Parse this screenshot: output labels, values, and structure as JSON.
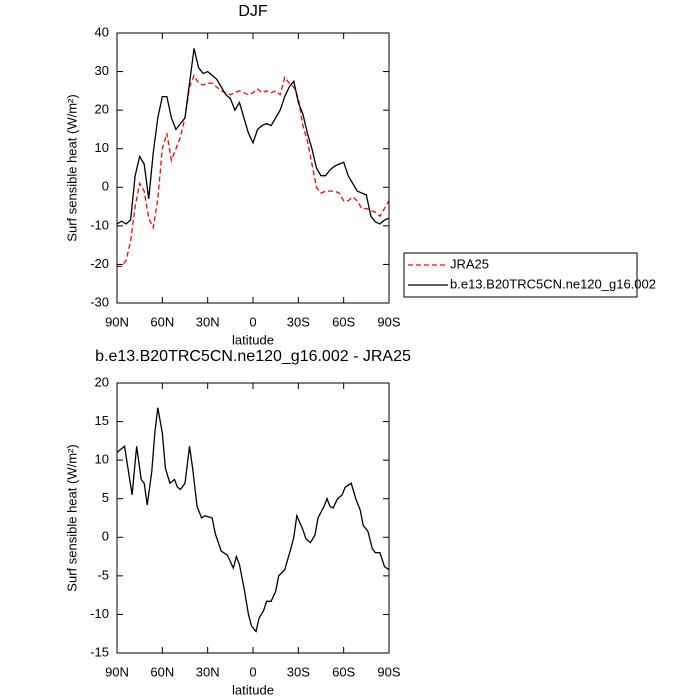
{
  "chart_data": [
    {
      "type": "line",
      "title": "DJF",
      "xlabel": "latitude",
      "ylabel": "Surf sensible heat (W/m²)",
      "xlim": [
        90,
        -90
      ],
      "ylim": [
        -30,
        40
      ],
      "xticks": [
        {
          "value": 90,
          "label": "90N"
        },
        {
          "value": 60,
          "label": "60N"
        },
        {
          "value": 30,
          "label": "30N"
        },
        0,
        {
          "value": -30,
          "label": "30S"
        },
        {
          "value": -60,
          "label": "60S"
        },
        {
          "value": -90,
          "label": "90S"
        }
      ],
      "yticks": [
        -30,
        -20,
        -10,
        0,
        10,
        20,
        30,
        40
      ],
      "legend_position": "right",
      "x": [
        90,
        87,
        84,
        81,
        78,
        75,
        72,
        69,
        66,
        63,
        60,
        57,
        54,
        51,
        48,
        45,
        42,
        39,
        36,
        33,
        30,
        27,
        24,
        21,
        18,
        15,
        12,
        9,
        6,
        3,
        0,
        -3,
        -6,
        -9,
        -12,
        -15,
        -18,
        -21,
        -24,
        -27,
        -30,
        -33,
        -36,
        -39,
        -42,
        -45,
        -48,
        -51,
        -54,
        -57,
        -60,
        -63,
        -66,
        -69,
        -72,
        -75,
        -78,
        -81,
        -84,
        -87,
        -90
      ],
      "series": [
        {
          "name": "JRA25",
          "color": "#ff0000",
          "line_style": "dashed",
          "values": [
            -20.5,
            -20.5,
            -19,
            -14,
            -5,
            1,
            -1,
            -8,
            -10.5,
            -3,
            10,
            14,
            7,
            10,
            13,
            18,
            26,
            29,
            27,
            26.5,
            27,
            27,
            26,
            25,
            24.5,
            24,
            24.5,
            25,
            24.5,
            24,
            24.5,
            25.5,
            24.5,
            25,
            24.5,
            25,
            24,
            28.5,
            27,
            26,
            23,
            16,
            12,
            6,
            0,
            -1.5,
            -1,
            -1,
            -1,
            -1.5,
            -3.5,
            -3.5,
            -2.5,
            -3.5,
            -5.5,
            -5.5,
            -6,
            -6.5,
            -7.5,
            -5.5,
            -3.5
          ]
        },
        {
          "name": "b.e13.B20TRC5CN.ne120_g16.002",
          "color": "#000000",
          "line_style": "solid",
          "values": [
            -9.5,
            -8.8,
            -9.5,
            -8.5,
            3,
            8,
            6,
            -3,
            9,
            18,
            23.5,
            23.5,
            18,
            15,
            16.5,
            18,
            27,
            36,
            31,
            29.5,
            30,
            29,
            28,
            26,
            24,
            23,
            20,
            22,
            18,
            14,
            11.5,
            15,
            16,
            16.5,
            16,
            18,
            20,
            23.5,
            26,
            27.5,
            22,
            19,
            14,
            10,
            5,
            3,
            3,
            4.5,
            5.5,
            6,
            6.5,
            3,
            1,
            -1,
            -1.5,
            -2,
            -7.5,
            -9,
            -9.5,
            -8.5,
            -8
          ]
        }
      ]
    },
    {
      "type": "line",
      "title": "b.e13.B20TRC5CN.ne120_g16.002 - JRA25",
      "xlabel": "latitude",
      "ylabel": "Surf sensible heat (W/m²)",
      "xlim": [
        90,
        -90
      ],
      "ylim": [
        -15,
        20
      ],
      "xticks": [
        {
          "value": 90,
          "label": "90N"
        },
        {
          "value": 60,
          "label": "60N"
        },
        {
          "value": 30,
          "label": "30N"
        },
        0,
        {
          "value": -30,
          "label": "30S"
        },
        {
          "value": -60,
          "label": "60S"
        },
        {
          "value": -90,
          "label": "90S"
        }
      ],
      "yticks": [
        -15,
        -10,
        -5,
        0,
        5,
        10,
        15,
        20
      ],
      "x": [
        90,
        85,
        80,
        77,
        74,
        72,
        70,
        67,
        65,
        63,
        60,
        58,
        55,
        52,
        50,
        48,
        45,
        42,
        40,
        37,
        34,
        32,
        27,
        25,
        21,
        17,
        13,
        11,
        9,
        6,
        3,
        1,
        -2,
        -4,
        -7,
        -9,
        -12,
        -15,
        -17,
        -21,
        -25,
        -27,
        -29,
        -33,
        -35,
        -38,
        -41,
        -43,
        -47,
        -49,
        -51,
        -53,
        -56,
        -59,
        -61,
        -65,
        -68,
        -71,
        -73,
        -76,
        -79,
        -81,
        -84,
        -87,
        -90
      ],
      "series": [
        {
          "color": "#000000",
          "line_style": "solid",
          "values": [
            11,
            11.8,
            5.5,
            11.8,
            7.5,
            7,
            4.2,
            8.5,
            13.5,
            16.8,
            13.5,
            9,
            7,
            7.5,
            6.5,
            6.2,
            7,
            11.8,
            9,
            4,
            2.5,
            2.8,
            2.5,
            0.5,
            -1.8,
            -2.3,
            -4,
            -2.5,
            -3.5,
            -6.5,
            -10,
            -11.5,
            -12.2,
            -10.5,
            -9.5,
            -8.3,
            -8.3,
            -7,
            -5,
            -4.2,
            -1.5,
            0,
            2.8,
            1,
            -0.2,
            -0.7,
            0.3,
            2.5,
            4,
            5,
            4,
            3.8,
            5,
            5.5,
            6.5,
            7,
            5,
            3.5,
            1.5,
            0.8,
            -1.5,
            -2,
            -2,
            -3.8,
            -4.2
          ]
        }
      ]
    }
  ]
}
